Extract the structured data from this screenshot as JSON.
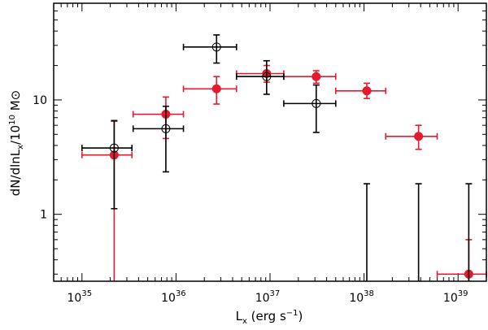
{
  "chart_data": {
    "type": "scatter",
    "title": "",
    "xlabel": "L_x (erg s⁻¹)",
    "ylabel": "dN/dlnL_x/10¹⁰ M⊙",
    "x_scale": "log",
    "y_scale": "log",
    "xlim": [
      5e+34,
      2e+39
    ],
    "ylim": [
      0.26,
      70
    ],
    "grid": false,
    "x_ticks": [
      {
        "value": 1e+35,
        "base": "10",
        "exp": "35"
      },
      {
        "value": 1e+36,
        "base": "10",
        "exp": "36"
      },
      {
        "value": 1e+37,
        "base": "10",
        "exp": "37"
      },
      {
        "value": 1e+38,
        "base": "10",
        "exp": "38"
      },
      {
        "value": 1e+39,
        "base": "10",
        "exp": "39"
      }
    ],
    "y_ticks": [
      {
        "value": 1,
        "label": "1"
      },
      {
        "value": 10,
        "label": "10"
      }
    ],
    "series": [
      {
        "name": "red filled",
        "marker": "filled-circle",
        "color": "#e8192c",
        "points": [
          {
            "x": 2.2e+35,
            "y": 3.3,
            "xlo": 1e+35,
            "xhi": 3.4e+35,
            "ylo": 0.26,
            "yhi": 6.5
          },
          {
            "x": 7.8e+35,
            "y": 7.5,
            "xlo": 3.5e+35,
            "xhi": 1.2e+36,
            "ylo": 4.6,
            "yhi": 10.6
          },
          {
            "x": 2.7e+36,
            "y": 12.5,
            "xlo": 1.2e+36,
            "xhi": 4.4e+36,
            "ylo": 9.2,
            "yhi": 16.0
          },
          {
            "x": 9.2e+36,
            "y": 17.0,
            "xlo": 4.4e+36,
            "xhi": 1.4e+37,
            "ylo": 14.3,
            "yhi": 20.0
          },
          {
            "x": 3.1e+37,
            "y": 16.0,
            "xlo": 1.4e+37,
            "xhi": 5e+37,
            "ylo": 14.0,
            "yhi": 18.0
          },
          {
            "x": 1.07e+38,
            "y": 12.0,
            "xlo": 5e+37,
            "xhi": 1.7e+38,
            "ylo": 10.3,
            "yhi": 14.0
          },
          {
            "x": 3.8e+38,
            "y": 4.8,
            "xlo": 1.7e+38,
            "xhi": 6e+38,
            "ylo": 3.7,
            "yhi": 6.0
          },
          {
            "x": 1.3e+39,
            "y": 0.3,
            "xlo": 6e+38,
            "xhi": 2e+39,
            "ylo": 0.26,
            "yhi": 0.6
          }
        ]
      },
      {
        "name": "black open",
        "marker": "open-circle",
        "color": "#000000",
        "points": [
          {
            "x": 2.2e+35,
            "y": 3.8,
            "xlo": 1e+35,
            "xhi": 3.4e+35,
            "ylo": 1.12,
            "yhi": 6.6
          },
          {
            "x": 7.8e+35,
            "y": 5.6,
            "xlo": 3.5e+35,
            "xhi": 1.2e+36,
            "ylo": 2.35,
            "yhi": 8.8
          },
          {
            "x": 2.7e+36,
            "y": 29.0,
            "xlo": 1.2e+36,
            "xhi": 4.4e+36,
            "ylo": 21.0,
            "yhi": 37.0
          },
          {
            "x": 9.2e+36,
            "y": 16.0,
            "xlo": 4.4e+36,
            "xhi": 1.4e+37,
            "ylo": 11.2,
            "yhi": 22.0
          },
          {
            "x": 3.1e+37,
            "y": 9.3,
            "xlo": 1.4e+37,
            "xhi": 5e+37,
            "ylo": 5.2,
            "yhi": 13.5
          },
          {
            "x": 1.07e+38,
            "y": 1.85,
            "xlo": 1.07e+38,
            "xhi": 1.07e+38,
            "ylo": 0.26,
            "yhi": 1.85,
            "upper_limit": true
          },
          {
            "x": 3.8e+38,
            "y": 1.85,
            "xlo": 3.8e+38,
            "xhi": 3.8e+38,
            "ylo": 0.26,
            "yhi": 1.85,
            "upper_limit": true
          },
          {
            "x": 1.3e+39,
            "y": 1.85,
            "xlo": 1.3e+39,
            "xhi": 1.3e+39,
            "ylo": 0.26,
            "yhi": 1.85,
            "upper_limit": true
          }
        ]
      }
    ]
  }
}
